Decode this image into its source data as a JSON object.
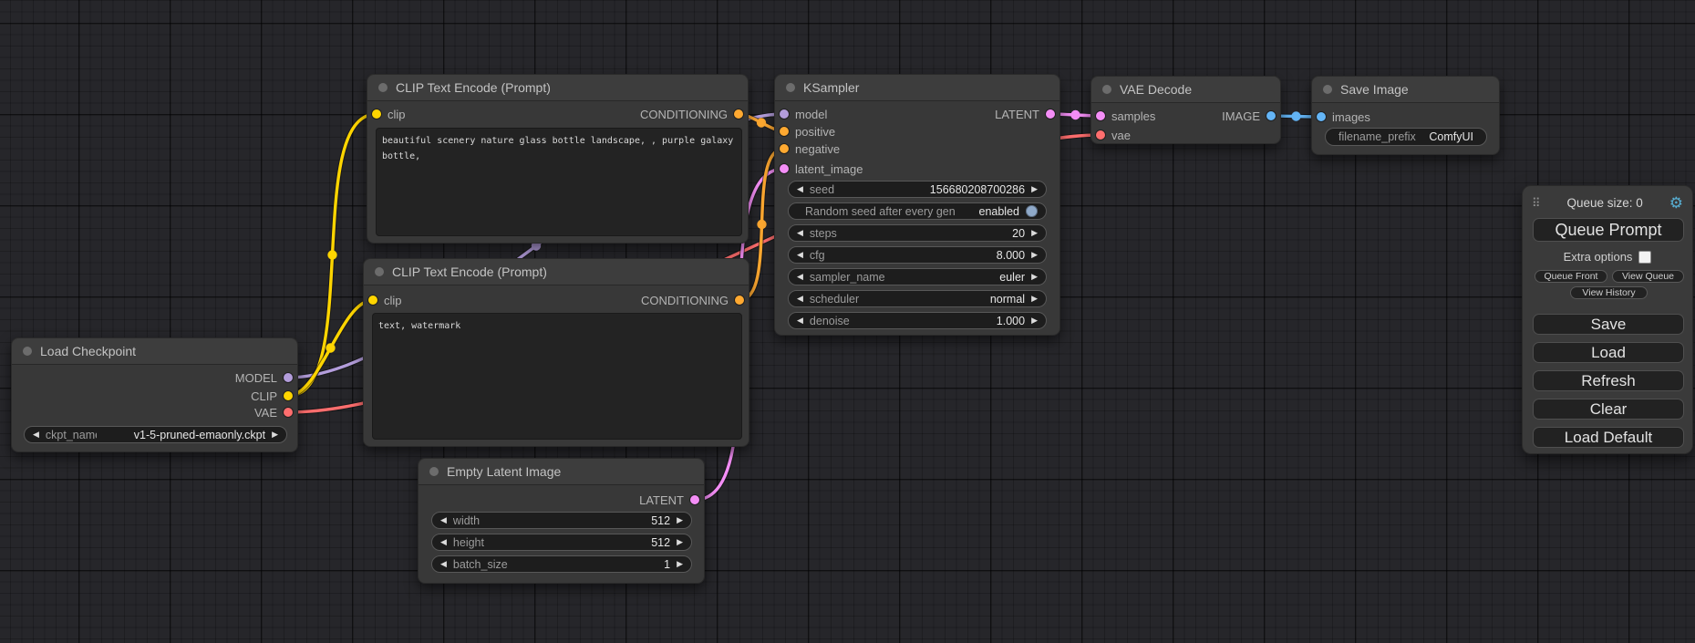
{
  "nodes": {
    "load_checkpoint": {
      "title": "Load Checkpoint",
      "outputs": [
        {
          "name": "MODEL",
          "color": "#B39DDB"
        },
        {
          "name": "CLIP",
          "color": "#FFD500"
        },
        {
          "name": "VAE",
          "color": "#FF6E6E"
        }
      ],
      "widgets": [
        {
          "label": "ckpt_name",
          "value": "v1-5-pruned-emaonly.ckpt"
        }
      ]
    },
    "clip_encode_1": {
      "title": "CLIP Text Encode (Prompt)",
      "inputs": [
        {
          "name": "clip",
          "color": "#FFD500"
        }
      ],
      "outputs": [
        {
          "name": "CONDITIONING",
          "color": "#FFA931"
        }
      ],
      "text": "beautiful scenery nature glass bottle landscape, , purple galaxy bottle,"
    },
    "clip_encode_2": {
      "title": "CLIP Text Encode (Prompt)",
      "inputs": [
        {
          "name": "clip",
          "color": "#FFD500"
        }
      ],
      "outputs": [
        {
          "name": "CONDITIONING",
          "color": "#FFA931"
        }
      ],
      "text": "text, watermark"
    },
    "empty_latent": {
      "title": "Empty Latent Image",
      "outputs": [
        {
          "name": "LATENT",
          "color": "#F48EF6"
        }
      ],
      "widgets": [
        {
          "label": "width",
          "value": "512"
        },
        {
          "label": "height",
          "value": "512"
        },
        {
          "label": "batch_size",
          "value": "1"
        }
      ]
    },
    "ksampler": {
      "title": "KSampler",
      "inputs": [
        {
          "name": "model",
          "color": "#B39DDB"
        },
        {
          "name": "positive",
          "color": "#FFA931"
        },
        {
          "name": "negative",
          "color": "#FFA931"
        },
        {
          "name": "latent_image",
          "color": "#F48EF6"
        }
      ],
      "outputs": [
        {
          "name": "LATENT",
          "color": "#F48EF6"
        }
      ],
      "widgets": [
        {
          "label": "seed",
          "value": "156680208700286"
        },
        {
          "label": "Random seed after every gen",
          "value": "enabled"
        },
        {
          "label": "steps",
          "value": "20"
        },
        {
          "label": "cfg",
          "value": "8.000"
        },
        {
          "label": "sampler_name",
          "value": "euler"
        },
        {
          "label": "scheduler",
          "value": "normal"
        },
        {
          "label": "denoise",
          "value": "1.000"
        }
      ]
    },
    "vae_decode": {
      "title": "VAE Decode",
      "inputs": [
        {
          "name": "samples",
          "color": "#F48EF6"
        },
        {
          "name": "vae",
          "color": "#FF6E6E"
        }
      ],
      "outputs": [
        {
          "name": "IMAGE",
          "color": "#64B5F6"
        }
      ]
    },
    "save_image": {
      "title": "Save Image",
      "inputs": [
        {
          "name": "images",
          "color": "#64B5F6"
        }
      ],
      "widgets": [
        {
          "label": "filename_prefix",
          "value": "ComfyUI"
        }
      ]
    }
  },
  "links": [
    {
      "from": "load_checkpoint.MODEL",
      "to": "ksampler.model",
      "color": "#B39DDB"
    },
    {
      "from": "load_checkpoint.VAE",
      "to": "vae_decode.vae",
      "color": "#FF6E6E"
    },
    {
      "from": "empty_latent.LATENT",
      "to": "ksampler.latent_image",
      "color": "#F48EF6"
    },
    {
      "from": "ksampler.LATENT",
      "to": "vae_decode.samples",
      "color": "#F48EF6"
    },
    {
      "from": "vae_decode.IMAGE",
      "to": "save_image.images",
      "color": "#64B5F6"
    },
    {
      "from": "clip_encode_1.CONDITIONING",
      "to": "ksampler.positive",
      "color": "#FFA931"
    },
    {
      "from": "clip_encode_2.CONDITIONING",
      "to": "ksampler.negative",
      "color": "#FFA931"
    },
    {
      "from": "load_checkpoint.CLIP",
      "to": "clip_encode_1.clip",
      "color": "#FFD500"
    },
    {
      "from": "load_checkpoint.CLIP",
      "to": "clip_encode_2.clip",
      "color": "#FFD500"
    }
  ],
  "queue_panel": {
    "queue_size": "Queue size: 0",
    "queue_prompt": "Queue Prompt",
    "extra_options": "Extra options",
    "queue_front": "Queue Front",
    "view_queue": "View Queue",
    "view_history": "View History",
    "save": "Save",
    "load": "Load",
    "refresh": "Refresh",
    "clear": "Clear",
    "load_default": "Load Default"
  }
}
